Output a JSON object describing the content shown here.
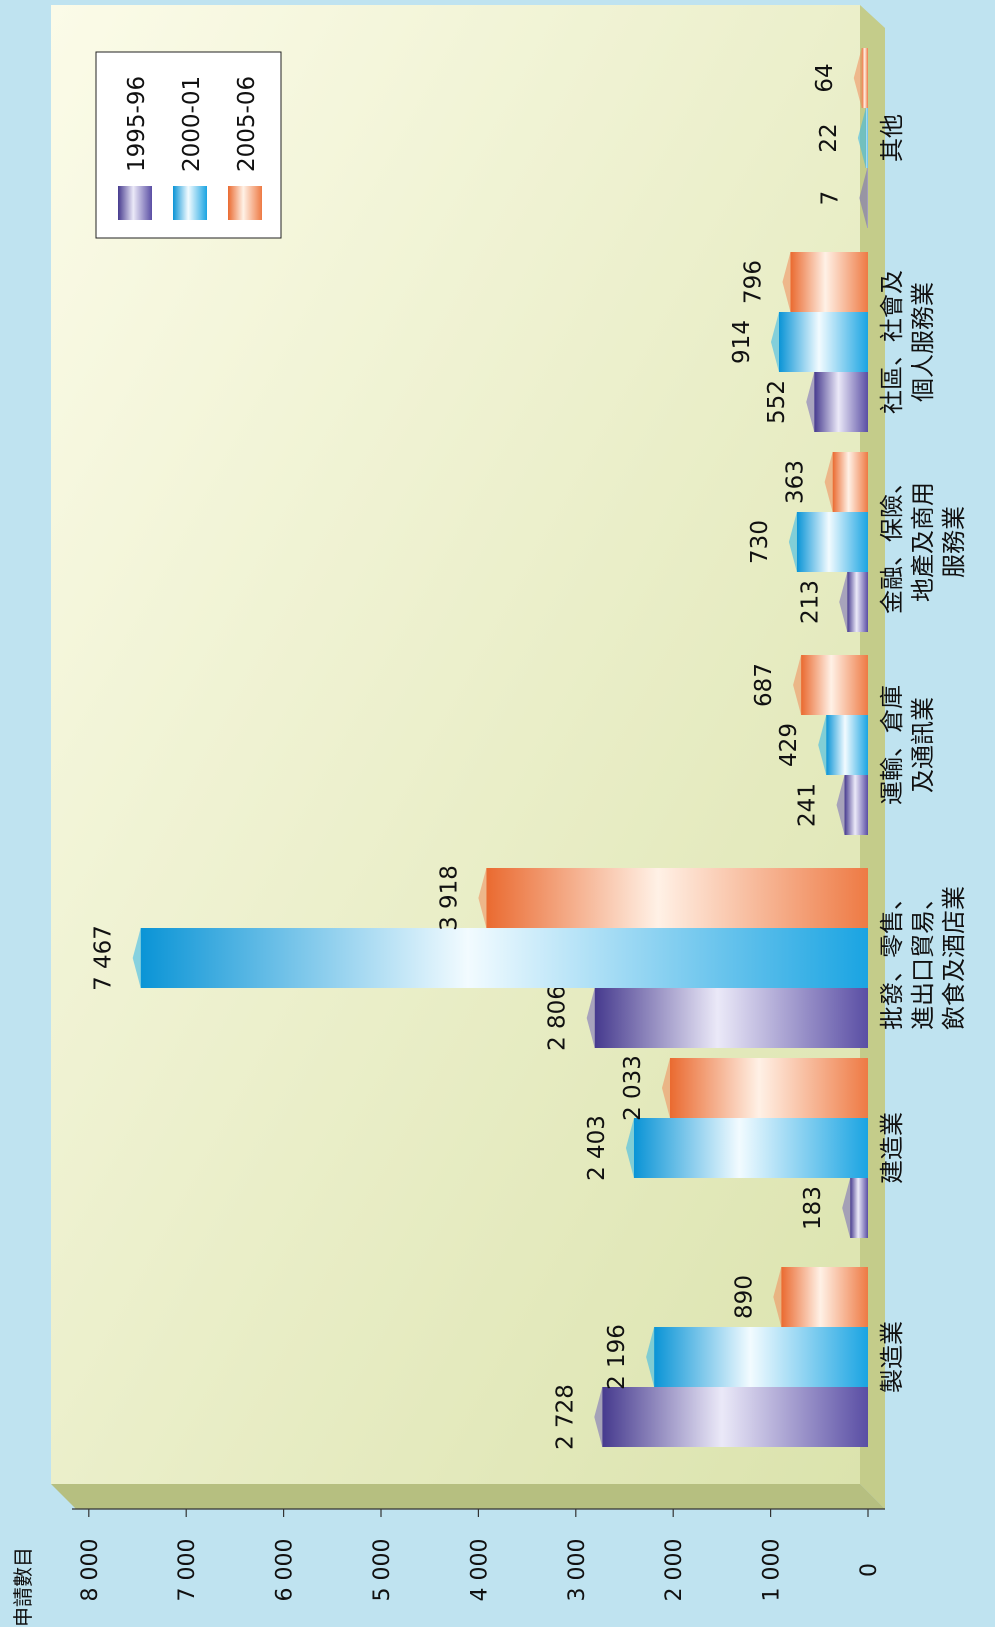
{
  "chart_data": {
    "type": "bar",
    "orientation": "horizontal-bars, page rotated 90° clockwise",
    "ylabel": "申請數目",
    "ylim": [
      0,
      8000
    ],
    "yticks": [
      "0",
      "1 000",
      "2 000",
      "3 000",
      "4 000",
      "5 000",
      "6 000",
      "7 000",
      "8 000"
    ],
    "grid": false,
    "legend_position": "top-right",
    "categories": [
      [
        "製造業"
      ],
      [
        "建造業"
      ],
      [
        "批發、零售、",
        "進出口貿易、",
        "飲食及酒店業"
      ],
      [
        "運輸、倉庫",
        "及通訊業"
      ],
      [
        "金融、保險、",
        "地產及商用",
        "服務業"
      ],
      [
        "社區、社會及",
        "個人服務業"
      ],
      [
        "其他"
      ]
    ],
    "series": [
      {
        "name": "1995-96",
        "color": "#7468b8",
        "values": [
          2728,
          183,
          2806,
          241,
          213,
          552,
          7
        ],
        "labels": [
          "2 728",
          "183",
          "2 806",
          "241",
          "213",
          "552",
          "7"
        ]
      },
      {
        "name": "2000-01",
        "color": "#2fb7ea",
        "values": [
          2196,
          2403,
          7467,
          429,
          730,
          914,
          22
        ],
        "labels": [
          "2 196",
          "2 403",
          "7 467",
          "429",
          "730",
          "914",
          "22"
        ]
      },
      {
        "name": "2005-06",
        "color": "#f08a5a",
        "values": [
          890,
          2033,
          3918,
          687,
          363,
          796,
          64
        ],
        "labels": [
          "890",
          "2 033",
          "3 918",
          "687",
          "363",
          "796",
          "64"
        ]
      }
    ]
  }
}
